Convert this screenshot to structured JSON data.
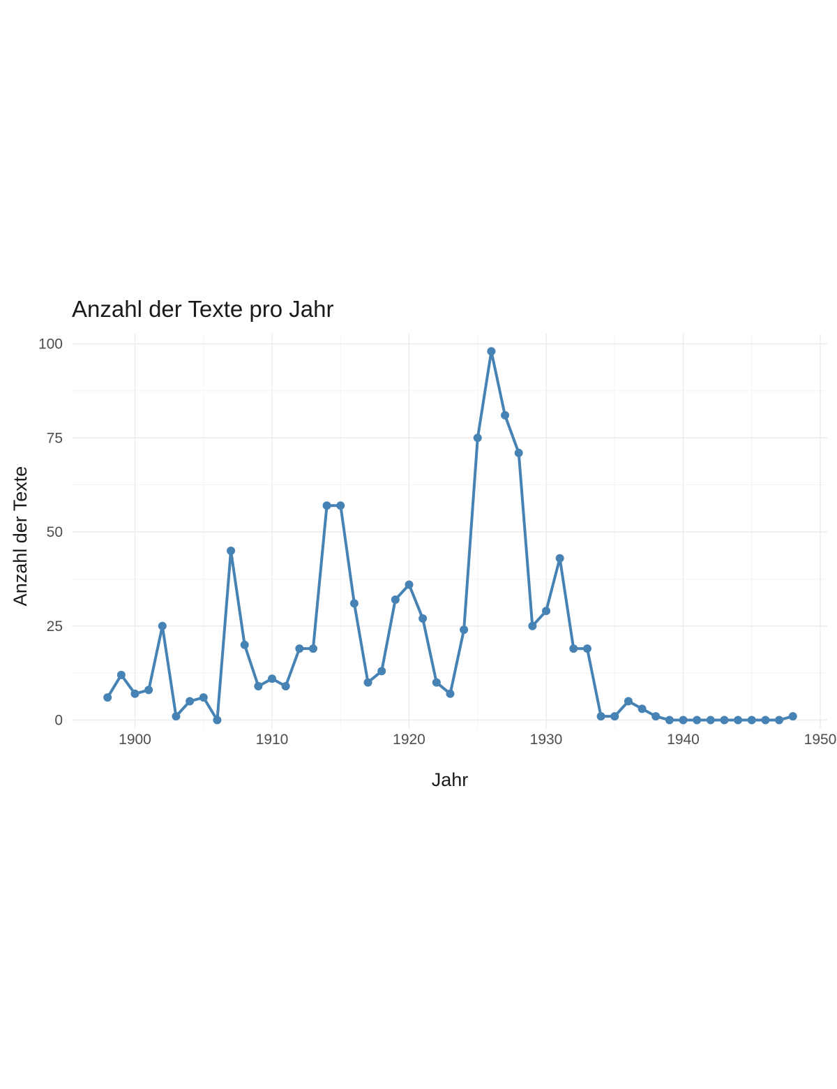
{
  "chart_data": {
    "type": "line",
    "title": "Anzahl der Texte pro Jahr",
    "xlabel": "Jahr",
    "ylabel": "Anzahl der Texte",
    "xlim": [
      1898,
      1950
    ],
    "ylim": [
      0,
      100
    ],
    "xticks": [
      1900,
      1910,
      1920,
      1930,
      1940,
      1950
    ],
    "yticks": [
      0,
      25,
      50,
      75,
      100
    ],
    "grid": true,
    "legend": "none",
    "color": "#4682b4",
    "x": [
      1898,
      1899,
      1900,
      1901,
      1902,
      1903,
      1904,
      1905,
      1906,
      1907,
      1908,
      1909,
      1910,
      1911,
      1912,
      1913,
      1914,
      1915,
      1916,
      1917,
      1918,
      1919,
      1920,
      1921,
      1922,
      1923,
      1924,
      1925,
      1926,
      1927,
      1928,
      1929,
      1930,
      1931,
      1932,
      1933,
      1934,
      1935,
      1936,
      1937,
      1938,
      1939,
      1940,
      1941,
      1942,
      1943,
      1944,
      1945,
      1946,
      1947,
      1948
    ],
    "y": [
      6,
      12,
      7,
      8,
      25,
      1,
      5,
      6,
      0,
      45,
      20,
      9,
      11,
      9,
      19,
      19,
      57,
      57,
      31,
      10,
      13,
      32,
      36,
      27,
      10,
      7,
      24,
      75,
      98,
      81,
      71,
      25,
      29,
      43,
      19,
      19,
      1,
      1,
      5,
      3,
      1,
      0,
      0,
      0,
      0,
      0,
      0,
      0,
      0,
      0,
      1
    ]
  }
}
